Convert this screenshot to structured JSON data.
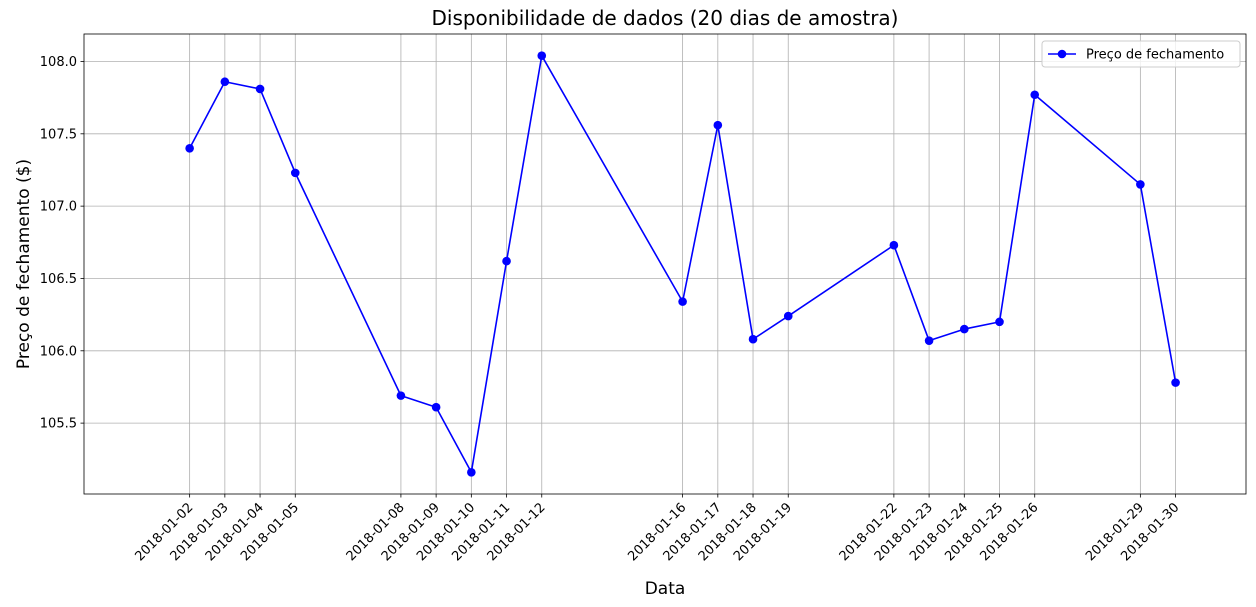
{
  "chart_data": {
    "type": "line",
    "title": "Disponibilidade de dados (20 dias de amostra)",
    "xlabel": "Data",
    "ylabel": "Preço de fechamento ($)",
    "x": [
      "2018-01-02",
      "2018-01-03",
      "2018-01-04",
      "2018-01-05",
      "2018-01-08",
      "2018-01-09",
      "2018-01-10",
      "2018-01-11",
      "2018-01-12",
      "2018-01-16",
      "2018-01-17",
      "2018-01-18",
      "2018-01-19",
      "2018-01-22",
      "2018-01-23",
      "2018-01-24",
      "2018-01-25",
      "2018-01-26",
      "2018-01-29",
      "2018-01-30"
    ],
    "series": [
      {
        "name": "Preço de fechamento",
        "color": "#0000ff",
        "marker": "circle",
        "values": [
          107.4,
          107.86,
          107.81,
          107.23,
          105.69,
          105.61,
          105.16,
          106.62,
          108.04,
          106.34,
          107.56,
          106.08,
          106.24,
          106.73,
          106.07,
          106.15,
          106.2,
          107.77,
          107.15,
          105.78
        ]
      }
    ],
    "yticks": [
      "105.5",
      "106.0",
      "106.5",
      "107.0",
      "107.5",
      "108.0"
    ],
    "ylim": [
      105.01,
      108.19
    ],
    "xlim": [
      "2017-12-30",
      "2018-02-01"
    ],
    "grid": true,
    "legend": "top-right",
    "xtick_rotation": 45
  }
}
